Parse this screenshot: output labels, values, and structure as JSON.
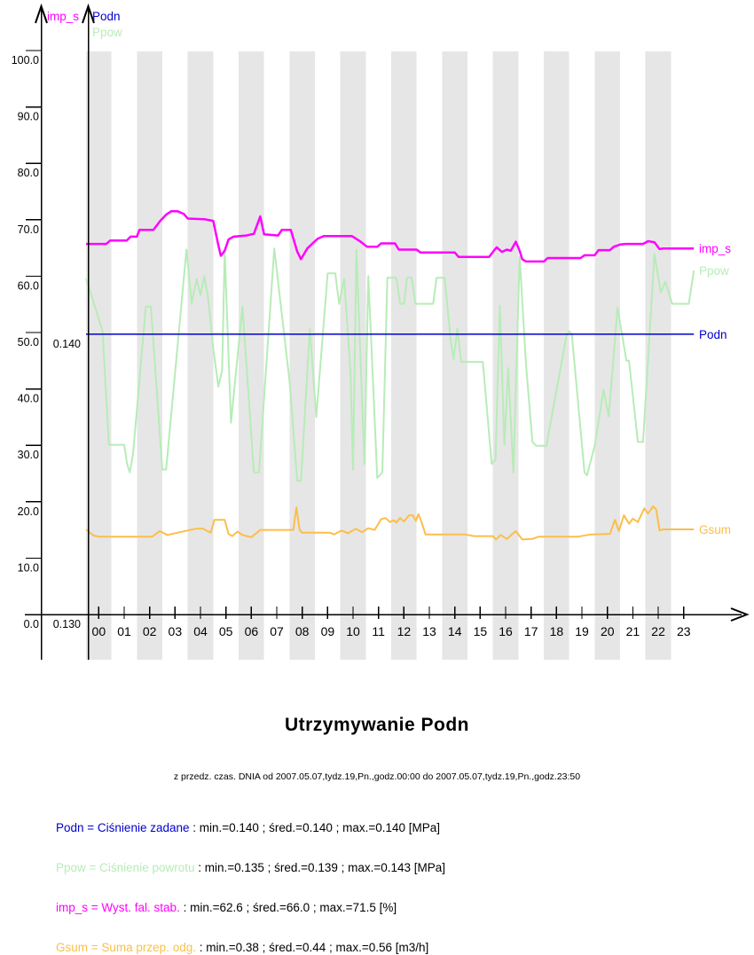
{
  "report": {
    "title": "Utrzymywanie Podn",
    "subtitle": "z przedz. czas. DNIA od 2007.05.07,tydz.19,Pn.,godz.00:00 do 2007.05.07,tydz.19,Pn.,godz.23:50"
  },
  "legend": {
    "rows": [
      {
        "name": "Podn = Ciśnienie zadane",
        "stats": " : min.=0.140 ; śred.=0.140 ; max.=0.140 [MPa]",
        "color": "#0000cc"
      },
      {
        "name": "Ppow = Ciśnienie powrotu",
        "stats": " : min.=0.135 ; śred.=0.139 ; max.=0.143 [MPa]",
        "color": "#b7ecb7"
      },
      {
        "name": "imp_s = Wyst. fal. stab.",
        "stats": " : min.=62.6 ; śred.=66.0 ; max.=71.5 [%]",
        "color": "#ff00ff"
      },
      {
        "name": "Gsum = Suma przep. odg.",
        "stats": " : min.=0.38 ; śred.=0.44 ; max.=0.56 [m3/h]",
        "color": "#fcbe4a"
      }
    ]
  },
  "chart_data": {
    "type": "line",
    "title": "Utrzymywanie Podn",
    "x_hours": 24,
    "hour_labels": [
      "00",
      "01",
      "02",
      "03",
      "04",
      "05",
      "06",
      "07",
      "08",
      "09",
      "10",
      "11",
      "12",
      "13",
      "14",
      "15",
      "16",
      "17",
      "18",
      "19",
      "20",
      "21",
      "22",
      "23"
    ],
    "percent_tick_labels": [
      "0.0",
      "10.0",
      "20.0",
      "30.0",
      "40.0",
      "50.0",
      "60.0",
      "70.0",
      "80.0",
      "90.0",
      "100.0"
    ],
    "pressure_ticks": [
      {
        "label": "0.140",
        "value": 49.7
      },
      {
        "label": "0.130",
        "value": 0.0
      }
    ],
    "stripe_color": "#e6e6e6",
    "top_axis_labels": [
      {
        "text": "imp_s",
        "x": 53,
        "y": 23,
        "color": "#ff00ff"
      },
      {
        "text": "Podn",
        "x": 104,
        "y": 23,
        "color": "#0000cc"
      },
      {
        "text": "Ppow",
        "x": 104,
        "y": 41,
        "color": "#b7ecb7"
      }
    ],
    "ylim": [
      0,
      100
    ],
    "series": [
      {
        "id": "Ppow",
        "end_label": "Ppow",
        "color": "#b7ecb7",
        "width": 2,
        "points": [
          [
            0,
            59.5
          ],
          [
            0.15,
            57.5
          ],
          [
            0.65,
            50.2
          ],
          [
            0.9,
            30.1
          ],
          [
            1.5,
            30.1
          ],
          [
            1.62,
            26.6
          ],
          [
            1.72,
            25.2
          ],
          [
            1.85,
            28.5
          ],
          [
            2.35,
            54.6
          ],
          [
            2.55,
            54.6
          ],
          [
            3.0,
            25.7
          ],
          [
            3.15,
            25.7
          ],
          [
            3.95,
            64.7
          ],
          [
            4.15,
            55.1
          ],
          [
            4.35,
            59.5
          ],
          [
            4.5,
            56.6
          ],
          [
            4.65,
            60.0
          ],
          [
            4.8,
            56.1
          ],
          [
            5.0,
            47.2
          ],
          [
            5.2,
            40.4
          ],
          [
            5.35,
            43.3
          ],
          [
            5.45,
            64.4
          ],
          [
            5.7,
            34.0
          ],
          [
            6.15,
            54.6
          ],
          [
            6.6,
            25.2
          ],
          [
            6.8,
            25.2
          ],
          [
            7.4,
            64.9
          ],
          [
            8.0,
            41.4
          ],
          [
            8.3,
            23.7
          ],
          [
            8.45,
            23.7
          ],
          [
            8.8,
            50.7
          ],
          [
            9.05,
            35.0
          ],
          [
            9.5,
            60.5
          ],
          [
            9.8,
            60.5
          ],
          [
            9.95,
            55.1
          ],
          [
            10.15,
            59.5
          ],
          [
            10.4,
            42.8
          ],
          [
            10.5,
            25.7
          ],
          [
            10.63,
            64.7
          ],
          [
            10.95,
            26.7
          ],
          [
            11.1,
            60.0
          ],
          [
            11.45,
            24.2
          ],
          [
            11.65,
            25.2
          ],
          [
            11.85,
            59.7
          ],
          [
            12.2,
            59.7
          ],
          [
            12.35,
            55.1
          ],
          [
            12.5,
            55.1
          ],
          [
            12.62,
            59.7
          ],
          [
            12.8,
            59.7
          ],
          [
            12.95,
            55.1
          ],
          [
            13.65,
            55.1
          ],
          [
            13.78,
            59.7
          ],
          [
            14.1,
            59.7
          ],
          [
            14.35,
            48.2
          ],
          [
            14.45,
            45.3
          ],
          [
            14.6,
            50.7
          ],
          [
            14.75,
            44.8
          ],
          [
            15.6,
            44.8
          ],
          [
            15.95,
            26.7
          ],
          [
            16.1,
            27.5
          ],
          [
            16.27,
            54.8
          ],
          [
            16.45,
            30.1
          ],
          [
            16.6,
            43.7
          ],
          [
            16.8,
            25.2
          ],
          [
            17.05,
            63.4
          ],
          [
            17.3,
            44.3
          ],
          [
            17.55,
            30.6
          ],
          [
            17.7,
            29.9
          ],
          [
            18.1,
            29.9
          ],
          [
            18.9,
            49.7
          ],
          [
            19.0,
            50.2
          ],
          [
            19.1,
            49.7
          ],
          [
            19.6,
            25.2
          ],
          [
            19.7,
            24.7
          ],
          [
            20.0,
            29.9
          ],
          [
            20.35,
            39.8
          ],
          [
            20.55,
            35.1
          ],
          [
            20.9,
            54.4
          ],
          [
            21.25,
            45.0
          ],
          [
            21.35,
            45.0
          ],
          [
            21.7,
            30.6
          ],
          [
            21.9,
            30.6
          ],
          [
            22.35,
            63.9
          ],
          [
            22.6,
            57.1
          ],
          [
            22.78,
            59.0
          ],
          [
            23.05,
            55.1
          ],
          [
            23.7,
            55.1
          ],
          [
            23.9,
            61.0
          ]
        ]
      },
      {
        "id": "Gsum",
        "end_label": "Gsum",
        "color": "#fcbe4a",
        "width": 2,
        "points": [
          [
            0,
            15.1
          ],
          [
            0.3,
            14.0
          ],
          [
            0.5,
            13.8
          ],
          [
            2.6,
            13.8
          ],
          [
            2.9,
            14.8
          ],
          [
            3.2,
            14.1
          ],
          [
            4.3,
            15.2
          ],
          [
            4.6,
            15.2
          ],
          [
            4.9,
            14.5
          ],
          [
            5.05,
            16.8
          ],
          [
            5.45,
            16.8
          ],
          [
            5.6,
            14.3
          ],
          [
            5.75,
            13.9
          ],
          [
            5.95,
            14.7
          ],
          [
            6.15,
            14.1
          ],
          [
            6.5,
            13.7
          ],
          [
            6.85,
            15.0
          ],
          [
            8.15,
            15.0
          ],
          [
            8.27,
            19.0
          ],
          [
            8.4,
            15.0
          ],
          [
            8.5,
            14.5
          ],
          [
            9.6,
            14.5
          ],
          [
            9.75,
            14.2
          ],
          [
            10.05,
            14.9
          ],
          [
            10.3,
            14.4
          ],
          [
            10.6,
            15.2
          ],
          [
            10.85,
            14.6
          ],
          [
            11.1,
            15.3
          ],
          [
            11.35,
            15.0
          ],
          [
            11.6,
            16.9
          ],
          [
            11.78,
            17.1
          ],
          [
            11.95,
            16.4
          ],
          [
            12.1,
            16.7
          ],
          [
            12.2,
            16.3
          ],
          [
            12.35,
            17.1
          ],
          [
            12.5,
            16.5
          ],
          [
            12.7,
            17.6
          ],
          [
            12.85,
            17.6
          ],
          [
            12.97,
            16.6
          ],
          [
            13.07,
            17.8
          ],
          [
            13.2,
            16.3
          ],
          [
            13.35,
            14.2
          ],
          [
            14.9,
            14.2
          ],
          [
            15.25,
            13.9
          ],
          [
            16.0,
            13.9
          ],
          [
            16.12,
            13.3
          ],
          [
            16.3,
            14.1
          ],
          [
            16.55,
            13.4
          ],
          [
            16.9,
            14.8
          ],
          [
            17.15,
            13.3
          ],
          [
            17.55,
            13.4
          ],
          [
            17.8,
            13.8
          ],
          [
            19.35,
            13.8
          ],
          [
            19.85,
            14.2
          ],
          [
            20.6,
            14.3
          ],
          [
            20.8,
            16.8
          ],
          [
            20.95,
            14.8
          ],
          [
            21.15,
            17.6
          ],
          [
            21.35,
            16.1
          ],
          [
            21.5,
            17.0
          ],
          [
            21.7,
            16.4
          ],
          [
            21.95,
            18.8
          ],
          [
            22.1,
            17.9
          ],
          [
            22.3,
            19.2
          ],
          [
            22.42,
            18.6
          ],
          [
            22.55,
            14.9
          ],
          [
            22.7,
            15.1
          ],
          [
            23.9,
            15.1
          ]
        ]
      },
      {
        "id": "Podn",
        "end_label": "Podn",
        "color": "#0000cc",
        "width": 1.5,
        "points": [
          [
            0,
            49.7
          ],
          [
            23.9,
            49.7
          ]
        ]
      },
      {
        "id": "imp_s",
        "end_label": "imp_s",
        "color": "#ff00ff",
        "width": 2.5,
        "points": [
          [
            0,
            65.7
          ],
          [
            0.8,
            65.7
          ],
          [
            0.95,
            66.3
          ],
          [
            1.6,
            66.3
          ],
          [
            1.75,
            67.0
          ],
          [
            2.0,
            67.0
          ],
          [
            2.1,
            68.2
          ],
          [
            2.65,
            68.2
          ],
          [
            2.9,
            69.7
          ],
          [
            3.15,
            70.9
          ],
          [
            3.35,
            71.5
          ],
          [
            3.6,
            71.5
          ],
          [
            3.85,
            71.0
          ],
          [
            4.0,
            70.2
          ],
          [
            4.65,
            70.1
          ],
          [
            5.0,
            69.8
          ],
          [
            5.2,
            65.5
          ],
          [
            5.3,
            63.6
          ],
          [
            5.45,
            64.5
          ],
          [
            5.6,
            66.5
          ],
          [
            5.8,
            67.0
          ],
          [
            6.3,
            67.2
          ],
          [
            6.6,
            67.5
          ],
          [
            6.85,
            70.6
          ],
          [
            7.0,
            67.4
          ],
          [
            7.55,
            67.2
          ],
          [
            7.7,
            68.2
          ],
          [
            8.05,
            68.2
          ],
          [
            8.3,
            64.4
          ],
          [
            8.45,
            63.0
          ],
          [
            8.7,
            64.9
          ],
          [
            9.1,
            66.6
          ],
          [
            9.35,
            67.1
          ],
          [
            10.45,
            67.1
          ],
          [
            10.8,
            66.1
          ],
          [
            11.05,
            65.2
          ],
          [
            11.45,
            65.2
          ],
          [
            11.6,
            65.8
          ],
          [
            12.15,
            65.8
          ],
          [
            12.3,
            64.7
          ],
          [
            13.0,
            64.7
          ],
          [
            13.15,
            64.2
          ],
          [
            14.5,
            64.2
          ],
          [
            14.65,
            63.4
          ],
          [
            15.85,
            63.4
          ],
          [
            16.05,
            64.6
          ],
          [
            16.15,
            65.1
          ],
          [
            16.35,
            64.3
          ],
          [
            16.55,
            64.7
          ],
          [
            16.7,
            64.5
          ],
          [
            16.9,
            66.1
          ],
          [
            17.05,
            64.5
          ],
          [
            17.15,
            63.0
          ],
          [
            17.3,
            62.6
          ],
          [
            18.0,
            62.6
          ],
          [
            18.15,
            63.2
          ],
          [
            19.45,
            63.2
          ],
          [
            19.6,
            63.7
          ],
          [
            20.0,
            63.7
          ],
          [
            20.15,
            64.6
          ],
          [
            20.6,
            64.6
          ],
          [
            20.75,
            65.2
          ],
          [
            21.0,
            65.6
          ],
          [
            21.2,
            65.7
          ],
          [
            21.9,
            65.7
          ],
          [
            22.1,
            66.2
          ],
          [
            22.35,
            66.0
          ],
          [
            22.55,
            64.8
          ],
          [
            22.7,
            64.9
          ],
          [
            23.9,
            64.9
          ]
        ]
      }
    ]
  }
}
